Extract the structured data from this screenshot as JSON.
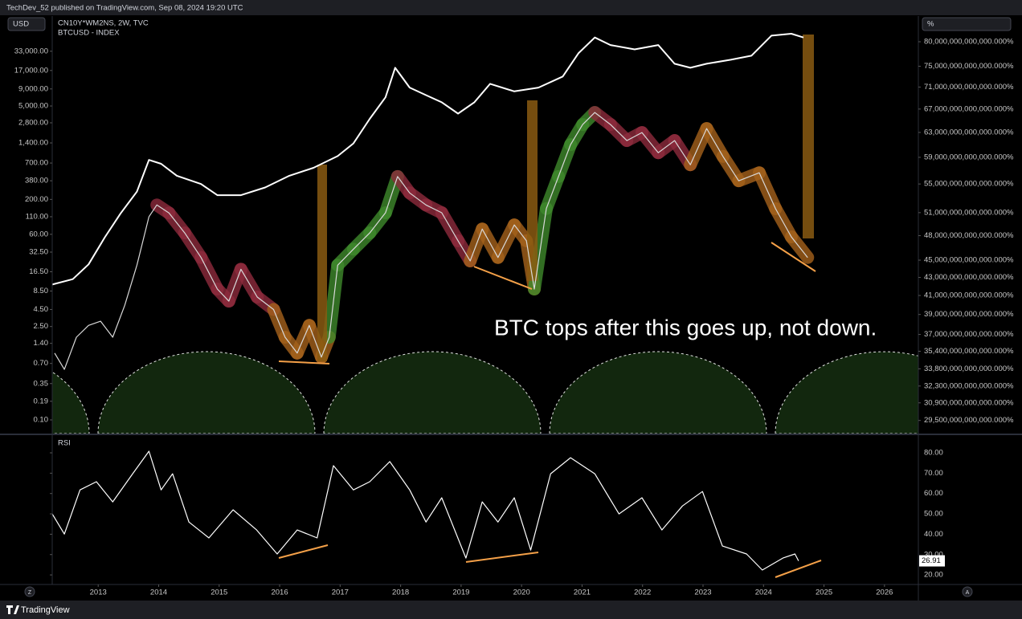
{
  "header": "TechDev_52 published on TradingView.com, Sep 08, 2024 19:20 UTC",
  "footer": "TradingView",
  "buttons": {
    "left": "Z",
    "right": "A"
  },
  "chart_data": [
    {
      "type": "line",
      "y_label": "USD",
      "y2_label": "%",
      "annotation": "BTC tops after this goes up, not down.",
      "xlim": [
        2012.24,
        2026.56
      ],
      "ylim": [
        0.0625,
        111000
      ],
      "ylog": true,
      "yticks": [
        {
          "value": 33000,
          "label": "33,000.00"
        },
        {
          "value": 17000,
          "label": "17,000.00"
        },
        {
          "value": 9000,
          "label": "9,000.00"
        },
        {
          "value": 5000,
          "label": "5,000.00"
        },
        {
          "value": 2800,
          "label": "2,800.00"
        },
        {
          "value": 1400,
          "label": "1,400.00"
        },
        {
          "value": 700,
          "label": "700.00"
        },
        {
          "value": 380,
          "label": "380.00"
        },
        {
          "value": 200,
          "label": "200.00"
        },
        {
          "value": 110,
          "label": "110.00"
        },
        {
          "value": 60,
          "label": "60.00"
        },
        {
          "value": 32.5,
          "label": "32.50"
        },
        {
          "value": 16.5,
          "label": "16.50"
        },
        {
          "value": 8.5,
          "label": "8.50"
        },
        {
          "value": 4.5,
          "label": "4.50"
        },
        {
          "value": 2.5,
          "label": "2.50"
        },
        {
          "value": 1.4,
          "label": "1.40"
        },
        {
          "value": 0.7,
          "label": "0.70"
        },
        {
          "value": 0.35,
          "label": "0.35"
        },
        {
          "value": 0.19,
          "label": "0.19"
        },
        {
          "value": 0.1,
          "label": "0.10"
        }
      ],
      "y2lim": [
        28500000000000,
        85600000000000
      ],
      "y2log": true,
      "y2ticks": [
        {
          "value": 80000000000000,
          "label": "80,000,000,000,000.000%"
        },
        {
          "value": 75000000000000,
          "label": "75,000,000,000,000.000%"
        },
        {
          "value": 71000000000000,
          "label": "71,000,000,000,000.000%"
        },
        {
          "value": 67000000000000,
          "label": "67,000,000,000,000.000%"
        },
        {
          "value": 63000000000000,
          "label": "63,000,000,000,000.000%"
        },
        {
          "value": 59000000000000,
          "label": "59,000,000,000,000.000%"
        },
        {
          "value": 55000000000000,
          "label": "55,000,000,000,000.000%"
        },
        {
          "value": 51000000000000,
          "label": "51,000,000,000,000.000%"
        },
        {
          "value": 48000000000000,
          "label": "48,000,000,000,000.000%"
        },
        {
          "value": 45000000000000,
          "label": "45,000,000,000,000.000%"
        },
        {
          "value": 43000000000000,
          "label": "43,000,000,000,000.000%"
        },
        {
          "value": 41000000000000,
          "label": "41,000,000,000,000.000%"
        },
        {
          "value": 39000000000000,
          "label": "39,000,000,000,000.000%"
        },
        {
          "value": 37000000000000,
          "label": "37,000,000,000,000.000%"
        },
        {
          "value": 35400000000000,
          "label": "35,400,000,000,000.000%"
        },
        {
          "value": 33800000000000,
          "label": "33,800,000,000,000.000%"
        },
        {
          "value": 32300000000000,
          "label": "32,300,000,000,000.000%"
        },
        {
          "value": 30900000000000,
          "label": "30,900,000,000,000.000%"
        },
        {
          "value": 29500000000000,
          "label": "29,500,000,000,000.000%"
        }
      ],
      "series": [
        {
          "name": "CN10Y*WM2NS, 2W, TVC",
          "color": "#ffffff",
          "axis": "y2",
          "x": [
            2012.24,
            2012.58,
            2012.84,
            2013.11,
            2013.37,
            2013.64,
            2013.84,
            2014.04,
            2014.3,
            2014.7,
            2014.97,
            2015.36,
            2015.76,
            2016.16,
            2016.56,
            2016.96,
            2017.22,
            2017.49,
            2017.75,
            2017.91,
            2018.15,
            2018.42,
            2018.68,
            2018.95,
            2019.22,
            2019.48,
            2019.88,
            2020.28,
            2020.68,
            2020.94,
            2021.21,
            2021.47,
            2021.87,
            2022.26,
            2022.53,
            2022.79,
            2023.06,
            2023.46,
            2023.8,
            2024.13,
            2024.46,
            2024.66
          ],
          "values": [
            42200000000000,
            42800000000000,
            44500000000000,
            47800000000000,
            50900000000000,
            53900000000000,
            58600000000000,
            58000000000000,
            56200000000000,
            55000000000000,
            53400000000000,
            53400000000000,
            54500000000000,
            56200000000000,
            57400000000000,
            59200000000000,
            61200000000000,
            65300000000000,
            69100000000000,
            74700000000000,
            70900000000000,
            69500000000000,
            68200000000000,
            66200000000000,
            68200000000000,
            71600000000000,
            70200000000000,
            70900000000000,
            73000000000000,
            77600000000000,
            80900000000000,
            79300000000000,
            78400000000000,
            79300000000000,
            75500000000000,
            74700000000000,
            75500000000000,
            76300000000000,
            77100000000000,
            81300000000000,
            81700000000000,
            80900000000000
          ]
        },
        {
          "name": "BTCUSD - INDEX",
          "color": "#d8d8d8",
          "axis": "y",
          "x": [
            2012.28,
            2012.44,
            2012.64,
            2012.84,
            2013.04,
            2013.24,
            2013.44,
            2013.64,
            2013.84,
            2013.97,
            2014.17,
            2014.43,
            2014.7,
            2014.97,
            2015.16,
            2015.36,
            2015.63,
            2015.9,
            2016.09,
            2016.29,
            2016.49,
            2016.69,
            2016.82,
            2016.96,
            2017.22,
            2017.49,
            2017.75,
            2017.95,
            2018.15,
            2018.42,
            2018.68,
            2018.95,
            2019.15,
            2019.35,
            2019.61,
            2019.88,
            2020.08,
            2020.21,
            2020.41,
            2020.61,
            2020.81,
            2021.01,
            2021.21,
            2021.47,
            2021.74,
            2021.99,
            2022.26,
            2022.53,
            2022.79,
            2023.06,
            2023.33,
            2023.59,
            2023.93,
            2024.2,
            2024.46,
            2024.73
          ],
          "values": [
            1.0,
            0.57,
            1.73,
            2.6,
            3.0,
            1.73,
            5.2,
            20.7,
            110,
            165,
            125,
            63,
            27,
            9.1,
            6,
            18,
            6.9,
            4.5,
            1.73,
            1.0,
            2.6,
            0.87,
            1.73,
            20.7,
            36,
            63,
            126,
            440,
            250,
            165,
            126,
            48,
            24,
            72,
            27,
            83,
            48,
            9.1,
            146,
            440,
            1320,
            2640,
            4000,
            2640,
            1520,
            2000,
            1000,
            1520,
            660,
            2300,
            880,
            380,
            500,
            145,
            55,
            27
          ],
          "colors": [
            null,
            null,
            null,
            null,
            null,
            null,
            null,
            null,
            null,
            "#8e2b3d",
            "#8e2b3d",
            "#8e2b3d",
            "#8e2b3d",
            "#8e2b3d",
            "#8e2b3d",
            "#8e2b3d",
            "#8e2b3d",
            "#a5621c",
            "#a5621c",
            "#a5621c",
            "#a5621c",
            "#a5621c",
            "#3f8a2c",
            "#3f8a2c",
            "#3f8a2c",
            "#3f8a2c",
            "#3f8a2c",
            "#8e2b3d",
            "#8e2b3d",
            "#8e2b3d",
            "#8e2b3d",
            "#8e2b3d",
            "#a5621c",
            "#a5621c",
            "#a5621c",
            "#a5621c",
            "#a5621c",
            "#3f8a2c",
            "#3f8a2c",
            "#3f8a2c",
            "#3f8a2c",
            "#3f8a2c",
            "#8e2b3d",
            "#8e2b3d",
            "#8e2b3d",
            "#8e2b3d",
            "#8e2b3d",
            "#8e2b3d",
            "#a5621c",
            "#a5621c",
            "#a5621c",
            "#a5621c",
            "#a5621c",
            "#a5621c",
            "#a5621c",
            "#a5621c"
          ]
        }
      ]
    },
    {
      "type": "line",
      "title": "RSI",
      "xlim": [
        2012.24,
        2026.56
      ],
      "xticks": [
        2013,
        2014,
        2015,
        2016,
        2017,
        2018,
        2019,
        2020,
        2021,
        2022,
        2023,
        2024,
        2025,
        2026
      ],
      "ylim": [
        15.3,
        88.3
      ],
      "yticks": [
        {
          "value": 80,
          "label": "80.00"
        },
        {
          "value": 70,
          "label": "70.00"
        },
        {
          "value": 60,
          "label": "60.00"
        },
        {
          "value": 50,
          "label": "50.00"
        },
        {
          "value": 40,
          "label": "40.00"
        },
        {
          "value": 30,
          "label": "30.00"
        },
        {
          "value": 20,
          "label": "20.00"
        }
      ],
      "last_value": 26.91,
      "series": [
        {
          "name": "RSI",
          "color": "#ffffff",
          "x": [
            2012.24,
            2012.44,
            2012.7,
            2012.97,
            2013.24,
            2013.57,
            2013.84,
            2014.04,
            2014.23,
            2014.5,
            2014.83,
            2015.23,
            2015.62,
            2015.96,
            2016.29,
            2016.62,
            2016.89,
            2017.22,
            2017.49,
            2017.82,
            2018.15,
            2018.42,
            2018.68,
            2019.08,
            2019.35,
            2019.61,
            2019.88,
            2020.15,
            2020.48,
            2020.81,
            2021.21,
            2021.61,
            2021.99,
            2022.32,
            2022.66,
            2022.99,
            2023.32,
            2023.72,
            2023.98,
            2024.32,
            2024.52,
            2024.58
          ],
          "values": [
            50,
            40.1,
            61.8,
            65.8,
            55.9,
            69.7,
            80.8,
            61.8,
            69.7,
            46,
            38.2,
            52,
            42.1,
            30.3,
            42.1,
            38.2,
            73.7,
            61.8,
            65.8,
            75.7,
            61.8,
            46,
            57.9,
            28.3,
            55.9,
            46,
            57.9,
            32.2,
            69.7,
            77.6,
            69.7,
            50,
            57.9,
            42.1,
            53.9,
            61,
            34.2,
            30.3,
            22.4,
            28.3,
            30.3,
            26.91
          ]
        }
      ]
    }
  ]
}
